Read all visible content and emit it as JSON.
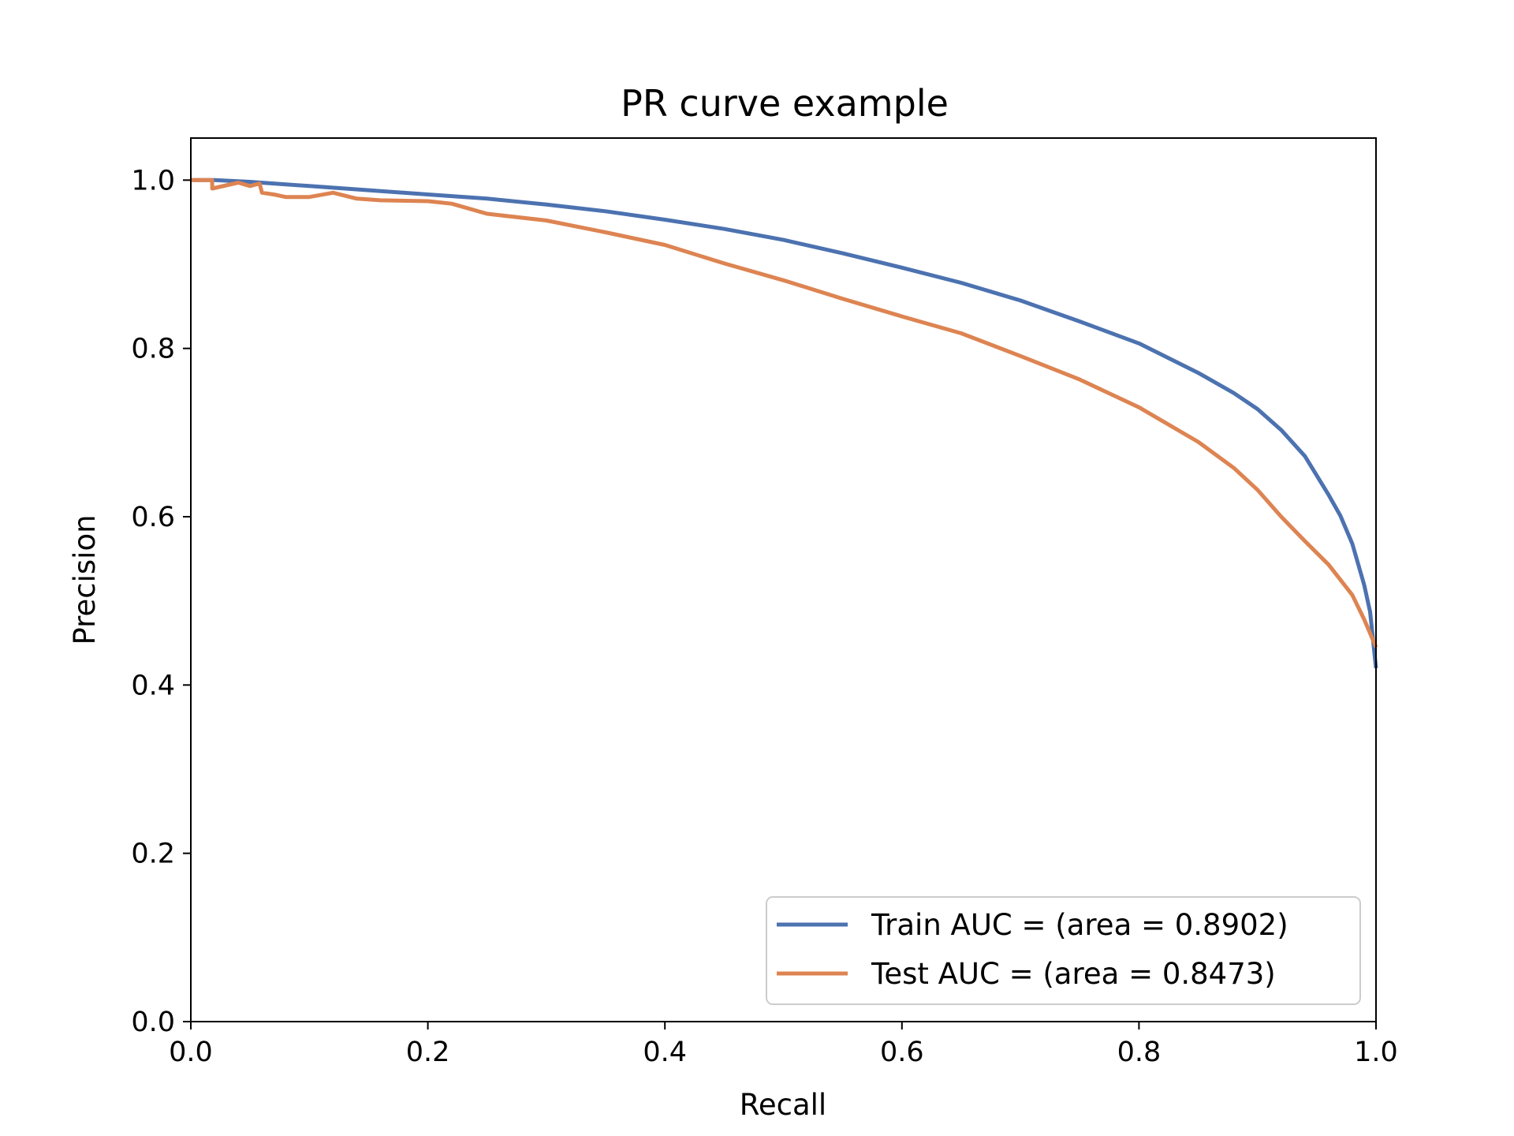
{
  "chart_data": {
    "type": "line",
    "title": "PR curve example",
    "xlabel": "Recall",
    "ylabel": "Precision",
    "xlim": [
      0.0,
      1.0
    ],
    "ylim": [
      0.0,
      1.05
    ],
    "xticks": [
      "0.0",
      "0.2",
      "0.4",
      "0.6",
      "0.8",
      "1.0"
    ],
    "yticks": [
      "0.0",
      "0.2",
      "0.4",
      "0.6",
      "0.8",
      "1.0"
    ],
    "grid": false,
    "legend_position": "lower-right",
    "series": [
      {
        "name": "Train AUC = (area = 0.8902)",
        "color": "#4c72b0",
        "points": [
          [
            0.0,
            1.0
          ],
          [
            0.02,
            1.0
          ],
          [
            0.05,
            0.998
          ],
          [
            0.1,
            0.993
          ],
          [
            0.15,
            0.988
          ],
          [
            0.2,
            0.983
          ],
          [
            0.25,
            0.978
          ],
          [
            0.3,
            0.971
          ],
          [
            0.35,
            0.963
          ],
          [
            0.4,
            0.953
          ],
          [
            0.45,
            0.942
          ],
          [
            0.5,
            0.929
          ],
          [
            0.55,
            0.913
          ],
          [
            0.6,
            0.896
          ],
          [
            0.65,
            0.878
          ],
          [
            0.7,
            0.857
          ],
          [
            0.75,
            0.832
          ],
          [
            0.8,
            0.806
          ],
          [
            0.85,
            0.771
          ],
          [
            0.88,
            0.747
          ],
          [
            0.9,
            0.728
          ],
          [
            0.92,
            0.703
          ],
          [
            0.94,
            0.672
          ],
          [
            0.96,
            0.626
          ],
          [
            0.97,
            0.601
          ],
          [
            0.98,
            0.568
          ],
          [
            0.99,
            0.519
          ],
          [
            0.995,
            0.487
          ],
          [
            1.0,
            0.42
          ]
        ]
      },
      {
        "name": "Test AUC = (area = 0.8473)",
        "color": "#dd8452",
        "points": [
          [
            0.0,
            1.0
          ],
          [
            0.018,
            1.0
          ],
          [
            0.018,
            0.99
          ],
          [
            0.04,
            0.997
          ],
          [
            0.05,
            0.993
          ],
          [
            0.058,
            0.996
          ],
          [
            0.06,
            0.985
          ],
          [
            0.07,
            0.983
          ],
          [
            0.08,
            0.98
          ],
          [
            0.1,
            0.98
          ],
          [
            0.12,
            0.985
          ],
          [
            0.14,
            0.978
          ],
          [
            0.16,
            0.976
          ],
          [
            0.2,
            0.975
          ],
          [
            0.22,
            0.972
          ],
          [
            0.25,
            0.96
          ],
          [
            0.3,
            0.952
          ],
          [
            0.35,
            0.938
          ],
          [
            0.4,
            0.923
          ],
          [
            0.45,
            0.901
          ],
          [
            0.5,
            0.881
          ],
          [
            0.55,
            0.859
          ],
          [
            0.6,
            0.838
          ],
          [
            0.65,
            0.818
          ],
          [
            0.7,
            0.791
          ],
          [
            0.75,
            0.763
          ],
          [
            0.8,
            0.73
          ],
          [
            0.85,
            0.689
          ],
          [
            0.88,
            0.658
          ],
          [
            0.9,
            0.632
          ],
          [
            0.92,
            0.6
          ],
          [
            0.94,
            0.571
          ],
          [
            0.96,
            0.543
          ],
          [
            0.98,
            0.507
          ],
          [
            0.99,
            0.478
          ],
          [
            1.0,
            0.445
          ]
        ]
      }
    ]
  }
}
